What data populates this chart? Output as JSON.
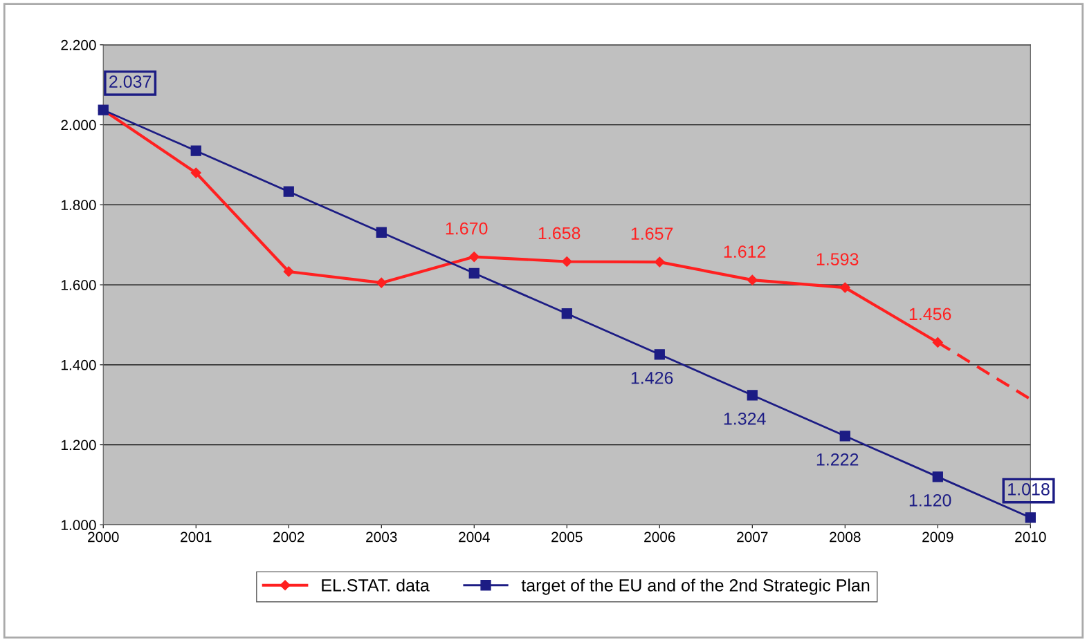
{
  "chart_data": {
    "type": "line",
    "categories": [
      "2000",
      "2001",
      "2002",
      "2003",
      "2004",
      "2005",
      "2006",
      "2007",
      "2008",
      "2009",
      "2010"
    ],
    "series": [
      {
        "name": "EL.STAT. data",
        "color": "#ff2020",
        "marker": "diamond",
        "values": [
          2037,
          1880,
          1633,
          1605,
          1670,
          1658,
          1657,
          1612,
          1593,
          1456,
          null
        ],
        "value_labels": [
          null,
          null,
          null,
          null,
          "1.670",
          "1.658",
          "1.657",
          "1.612",
          "1.593",
          "1.456",
          null
        ]
      },
      {
        "color": "#ff2020",
        "marker": "none",
        "line_style": "dashed",
        "values": [
          null,
          null,
          null,
          null,
          null,
          null,
          null,
          null,
          null,
          1456,
          1314
        ]
      },
      {
        "name": "target of the EU and of the 2nd Strategic Plan",
        "color": "#1c1c84",
        "marker": "square",
        "values": [
          2037,
          1935,
          1833,
          1731,
          1629,
          1528,
          1426,
          1324,
          1222,
          1120,
          1018
        ],
        "value_labels": [
          "2.037",
          null,
          null,
          null,
          null,
          null,
          "1.426",
          "1.324",
          "1.222",
          "1.120",
          "1.018"
        ]
      }
    ],
    "ylim": [
      1000,
      2200
    ],
    "yticks": [
      {
        "value": 1000,
        "label": "1.000"
      },
      {
        "value": 1200,
        "label": "1.200"
      },
      {
        "value": 1400,
        "label": "1.400"
      },
      {
        "value": 1600,
        "label": "1.600"
      },
      {
        "value": 1800,
        "label": "1.800"
      },
      {
        "value": 2000,
        "label": "2.000"
      },
      {
        "value": 2200,
        "label": "2.200"
      }
    ],
    "grid": "y",
    "legend": "bottom"
  }
}
